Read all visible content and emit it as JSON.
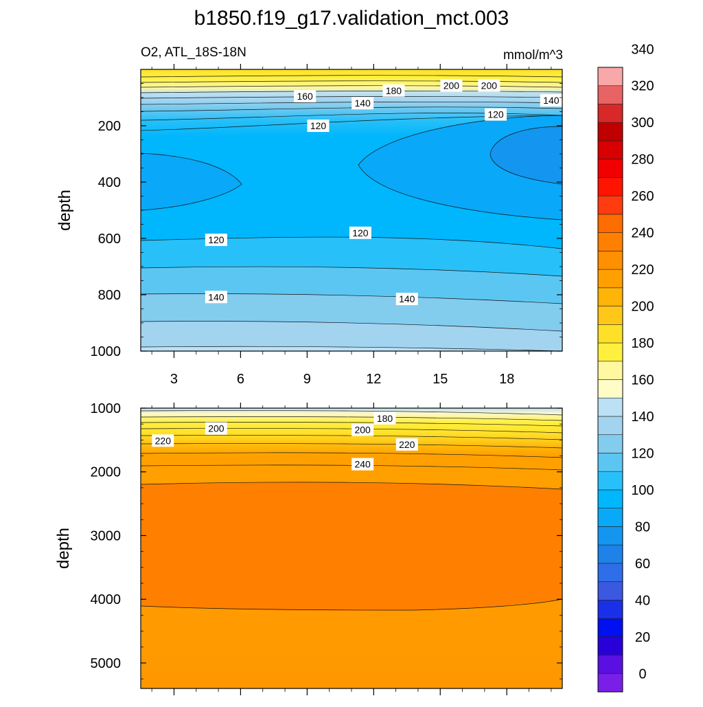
{
  "chart_data": {
    "type": "heatmap",
    "title": "b1850.f19_g17.validation_mct.003",
    "subtitle_left": "O2, ATL_18S-18N",
    "subtitle_right": "mmol/m^3",
    "ylabel": "depth",
    "xticks": [
      "3",
      "6",
      "9",
      "12",
      "15",
      "18"
    ],
    "xlim": [
      1.5,
      20.5
    ],
    "colorbar": {
      "colors": [
        "#7a1fe8",
        "#5a10e0",
        "#2a00d8",
        "#0010f0",
        "#1a30e8",
        "#3a58e0",
        "#2e6ee8",
        "#1e82e8",
        "#1496f0",
        "#0aa8f8",
        "#00b6fc",
        "#28c0f8",
        "#5cc6f2",
        "#82ccee",
        "#a2d4f0",
        "#bce0f4",
        "#fffcc8",
        "#fff8a0",
        "#fff040",
        "#ffe028",
        "#ffc818",
        "#ffb408",
        "#ffa000",
        "#ff9000",
        "#ff8000",
        "#ff6c00",
        "#ff3c10",
        "#ff1400",
        "#f00000",
        "#d80000",
        "#c00000",
        "#d82828",
        "#e86464",
        "#f8a8a8"
      ],
      "tick_labels": [
        "0",
        "20",
        "40",
        "60",
        "80",
        "100",
        "120",
        "140",
        "160",
        "180",
        "200",
        "220",
        "240",
        "260",
        "280",
        "300",
        "320",
        "340"
      ]
    },
    "panels": [
      {
        "name": "upper",
        "ytick_labels": [
          "200",
          "400",
          "600",
          "800",
          "1000"
        ],
        "ytick_values": [
          200,
          400,
          600,
          800,
          1000
        ],
        "ylim": [
          0,
          1000
        ],
        "contour_labels": [
          {
            "text": "160",
            "x": 8.9,
            "y": 95
          },
          {
            "text": "180",
            "x": 12.9,
            "y": 75
          },
          {
            "text": "200",
            "x": 15.5,
            "y": 57
          },
          {
            "text": "200",
            "x": 17.2,
            "y": 57
          },
          {
            "text": "140",
            "x": 11.5,
            "y": 120
          },
          {
            "text": "140",
            "x": 20.0,
            "y": 110
          },
          {
            "text": "120",
            "x": 17.5,
            "y": 160
          },
          {
            "text": "120",
            "x": 9.5,
            "y": 200
          },
          {
            "text": "120",
            "x": 4.9,
            "y": 605
          },
          {
            "text": "120",
            "x": 11.4,
            "y": 580
          },
          {
            "text": "140",
            "x": 4.9,
            "y": 808
          },
          {
            "text": "140",
            "x": 13.5,
            "y": 815
          }
        ]
      },
      {
        "name": "lower",
        "ytick_labels": [
          "1000",
          "2000",
          "3000",
          "4000",
          "5000"
        ],
        "ytick_values": [
          1000,
          2000,
          3000,
          4000,
          5000
        ],
        "ylim": [
          1000,
          5400
        ],
        "contour_labels": [
          {
            "text": "180",
            "x": 12.5,
            "y": 1160
          },
          {
            "text": "200",
            "x": 4.9,
            "y": 1320
          },
          {
            "text": "200",
            "x": 11.5,
            "y": 1340
          },
          {
            "text": "220",
            "x": 2.5,
            "y": 1510
          },
          {
            "text": "220",
            "x": 13.5,
            "y": 1570
          },
          {
            "text": "240",
            "x": 11.5,
            "y": 1880
          }
        ]
      }
    ]
  }
}
